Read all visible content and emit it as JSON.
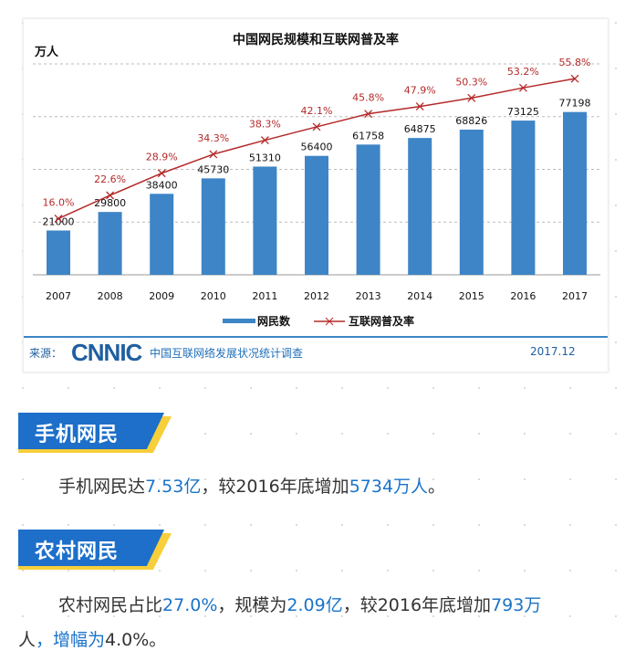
{
  "chart_data": {
    "type": "bar",
    "title": "中国网民规模和互联网普及率",
    "ylabel": "万人",
    "categories": [
      "2007",
      "2008",
      "2009",
      "2010",
      "2011",
      "2012",
      "2013",
      "2014",
      "2015",
      "2016",
      "2017"
    ],
    "series": [
      {
        "name": "网民数",
        "type": "bar",
        "color": "#3d85c6",
        "values": [
          21000,
          29800,
          38400,
          45730,
          51310,
          56400,
          61758,
          64875,
          68826,
          73125,
          77198
        ],
        "labels": [
          "21000",
          "29800",
          "38400",
          "45730",
          "51310",
          "56400",
          "61758",
          "64875",
          "68826",
          "73125",
          "77198"
        ]
      },
      {
        "name": "互联网普及率",
        "type": "line",
        "color": "#b52a2a",
        "values": [
          16.0,
          22.6,
          28.9,
          34.3,
          38.3,
          42.1,
          45.8,
          47.9,
          50.3,
          53.2,
          55.8
        ],
        "labels": [
          "16.0%",
          "22.6%",
          "28.9%",
          "34.3%",
          "38.3%",
          "42.1%",
          "45.8%",
          "47.9%",
          "50.3%",
          "53.2%",
          "55.8%"
        ]
      }
    ],
    "ylim": [
      0,
      100000
    ],
    "y2lim": [
      0,
      60
    ],
    "grid": true,
    "legend": "bottom"
  },
  "source": {
    "label": "来源：",
    "logo": "CNNIC",
    "survey": "中国互联网络发展状况统计调查",
    "date": "2017.12"
  },
  "sections": [
    {
      "title": "手机网民",
      "lines": [
        [
          {
            "t": "手机网民达"
          },
          {
            "t": "7.53亿",
            "hl": true
          },
          {
            "t": "，较2016年底增加"
          },
          {
            "t": "5734万人",
            "hl": true
          },
          {
            "t": "。"
          }
        ]
      ]
    },
    {
      "title": "农村网民",
      "lines": [
        [
          {
            "t": "农村网民占比"
          },
          {
            "t": "27.0%",
            "hl": true
          },
          {
            "t": "，规模为"
          },
          {
            "t": "2.09亿",
            "hl": true
          },
          {
            "t": "，较2016年底增加"
          },
          {
            "t": "793万",
            "hl": true
          }
        ],
        [
          {
            "t": "人"
          },
          {
            "t": "，增幅为",
            "hl": true
          },
          {
            "t": "4.0%。"
          }
        ]
      ]
    }
  ]
}
